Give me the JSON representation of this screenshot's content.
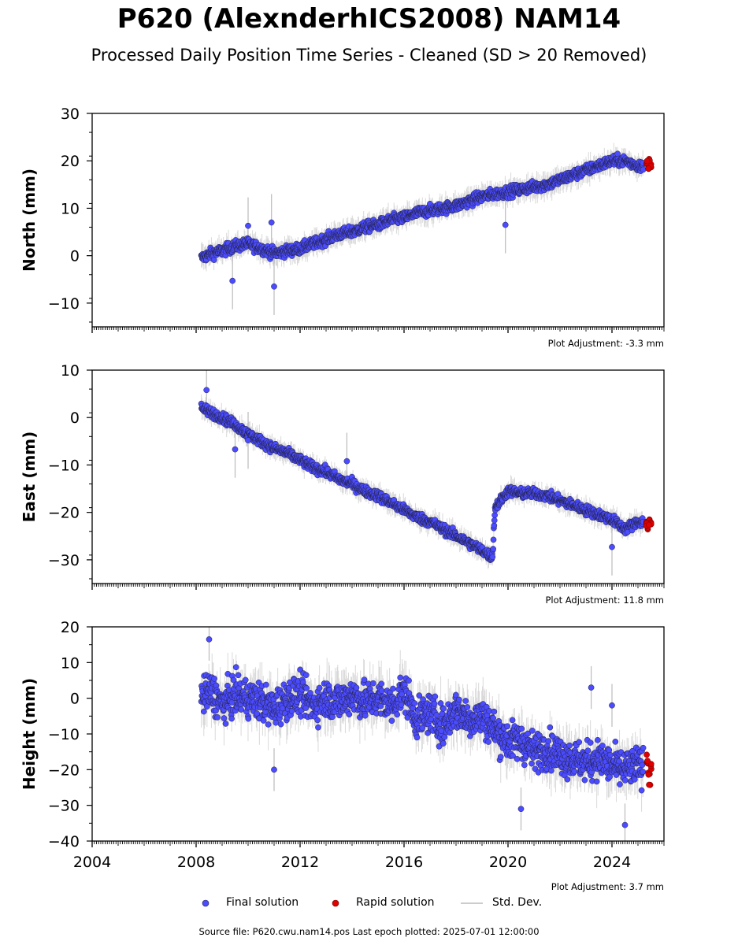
{
  "title": "P620 (AlexnderhICS2008) NAM14",
  "subtitle": "Processed Daily Position Time Series - Cleaned (SD > 20 Removed)",
  "footer": "Source file: P620.cwu.nam14.pos  Last epoch plotted: 2025-07-01 12:00:00",
  "legend": {
    "final": "Final solution",
    "rapid": "Rapid solution",
    "std": "Std. Dev."
  },
  "colors": {
    "final": "#4b4bff",
    "rapid": "#e00000",
    "std": "#bbbbbb",
    "edge": "#222244"
  },
  "chart_data": [
    {
      "type": "scatter",
      "ylabel": "North (mm)",
      "ylim": [
        -15,
        30
      ],
      "yticks": [
        "30",
        "20",
        "10",
        "0",
        "−10"
      ],
      "ytick_values": [
        30,
        20,
        10,
        0,
        -10
      ],
      "xlim": [
        2004,
        2026
      ],
      "adjustment": "Plot Adjustment: -3.3 mm",
      "series": [
        {
          "kind": "final",
          "x": [
            2008.2,
            2008.6,
            2009.0,
            2009.5,
            2010.0,
            2010.5,
            2011.0,
            2011.5,
            2012.0,
            2012.5,
            2013.0,
            2013.5,
            2014.0,
            2014.5,
            2015.0,
            2015.5,
            2016.0,
            2016.5,
            2017.0,
            2017.5,
            2018.0,
            2018.5,
            2019.0,
            2019.5,
            2020.0,
            2020.5,
            2021.0,
            2021.5,
            2022.0,
            2022.5,
            2023.0,
            2023.5,
            2024.0,
            2024.5,
            2025.0
          ],
          "y": [
            -0.5,
            0.5,
            1.0,
            2.0,
            2.5,
            1.5,
            0.5,
            1.0,
            1.5,
            2.5,
            3.5,
            4.5,
            5.0,
            6.0,
            6.5,
            7.5,
            8.0,
            9.0,
            9.5,
            10.0,
            10.5,
            11.5,
            12.5,
            13.0,
            13.5,
            14.0,
            14.5,
            15.0,
            16.0,
            17.0,
            18.0,
            19.0,
            20.0,
            20.0,
            19.0
          ],
          "outliers_x": [
            2009.4,
            2010.0,
            2010.9,
            2011.0,
            2019.9
          ],
          "outliers_y": [
            -5.3,
            6.3,
            7.0,
            -6.5,
            6.5
          ]
        },
        {
          "kind": "rapid",
          "x": [
            2025.35,
            2025.4,
            2025.45,
            2025.5
          ],
          "y": [
            19.5,
            18.5,
            20.0,
            19.0
          ]
        }
      ]
    },
    {
      "type": "scatter",
      "ylabel": "East (mm)",
      "ylim": [
        -35,
        10
      ],
      "yticks": [
        "10",
        "0",
        "−10",
        "−20",
        "−30"
      ],
      "ytick_values": [
        10,
        0,
        -10,
        -20,
        -30
      ],
      "xlim": [
        2004,
        2026
      ],
      "adjustment": "Plot Adjustment: 11.8 mm",
      "series": [
        {
          "kind": "final",
          "x": [
            2008.2,
            2008.6,
            2009.0,
            2009.5,
            2010.0,
            2010.5,
            2011.0,
            2011.5,
            2012.0,
            2012.5,
            2013.0,
            2013.5,
            2014.0,
            2014.5,
            2015.0,
            2015.5,
            2016.0,
            2016.5,
            2017.0,
            2017.5,
            2018.0,
            2018.5,
            2019.0,
            2019.4,
            2019.5,
            2020.0,
            2020.5,
            2021.0,
            2021.5,
            2022.0,
            2022.5,
            2023.0,
            2023.5,
            2024.0,
            2024.5,
            2025.0
          ],
          "y": [
            2.0,
            1.0,
            0.0,
            -1.5,
            -3.5,
            -5.0,
            -6.5,
            -7.5,
            -9.0,
            -10.5,
            -11.5,
            -13.0,
            -14.0,
            -15.5,
            -16.5,
            -18.0,
            -19.5,
            -21.0,
            -22.0,
            -23.5,
            -25.0,
            -26.5,
            -28.0,
            -29.5,
            -19.0,
            -15.5,
            -16.0,
            -16.0,
            -16.5,
            -17.5,
            -18.5,
            -19.5,
            -20.5,
            -21.5,
            -23.5,
            -22.0
          ],
          "outliers_x": [
            2008.4,
            2009.5,
            2010.0,
            2013.8,
            2024.0
          ],
          "outliers_y": [
            5.8,
            -6.7,
            -4.8,
            -9.2,
            -27.3
          ]
        },
        {
          "kind": "rapid",
          "x": [
            2025.35,
            2025.4,
            2025.45,
            2025.5
          ],
          "y": [
            -22.5,
            -23.0,
            -21.8,
            -22.5
          ]
        }
      ]
    },
    {
      "type": "scatter",
      "ylabel": "Height (mm)",
      "ylim": [
        -40,
        20
      ],
      "yticks": [
        "20",
        "10",
        "0",
        "−10",
        "−20",
        "−30",
        "−40"
      ],
      "ytick_values": [
        20,
        10,
        0,
        -10,
        -20,
        -30,
        -40
      ],
      "xlim": [
        2004,
        2026
      ],
      "xticks": [
        "2004",
        "2008",
        "2012",
        "2016",
        "2020",
        "2024"
      ],
      "xtick_values": [
        2004,
        2008,
        2012,
        2016,
        2020,
        2024
      ],
      "adjustment": "Plot Adjustment: 3.7 mm",
      "series": [
        {
          "kind": "final",
          "x": [
            2008.2,
            2008.6,
            2009.0,
            2009.5,
            2010.0,
            2010.5,
            2011.0,
            2011.5,
            2012.0,
            2012.5,
            2013.0,
            2013.5,
            2014.0,
            2014.5,
            2015.0,
            2015.5,
            2016.0,
            2016.5,
            2017.0,
            2017.5,
            2018.0,
            2018.5,
            2019.0,
            2019.5,
            2020.0,
            2020.5,
            2021.0,
            2021.5,
            2022.0,
            2022.5,
            2023.0,
            2023.5,
            2024.0,
            2024.5,
            2025.0
          ],
          "y": [
            0.0,
            2.0,
            -2.0,
            1.0,
            0.0,
            -1.0,
            -3.0,
            0.0,
            1.0,
            -2.0,
            0.0,
            -1.0,
            1.0,
            -1.0,
            0.0,
            -2.0,
            2.0,
            -6.0,
            -4.0,
            -8.0,
            -3.0,
            -6.0,
            -5.0,
            -9.0,
            -12.0,
            -12.0,
            -15.0,
            -14.0,
            -16.0,
            -17.0,
            -18.0,
            -17.0,
            -19.0,
            -20.0,
            -19.0
          ],
          "outliers_x": [
            2008.5,
            2011.0,
            2020.5,
            2023.2,
            2024.0,
            2024.5
          ],
          "outliers_y": [
            16.5,
            -20.0,
            -31.0,
            3.0,
            -2.0,
            -35.5
          ]
        },
        {
          "kind": "rapid",
          "x": [
            2025.35,
            2025.4,
            2025.45,
            2025.5
          ],
          "y": [
            -16.0,
            -19.5,
            -22.5,
            -18.0
          ]
        }
      ]
    }
  ]
}
